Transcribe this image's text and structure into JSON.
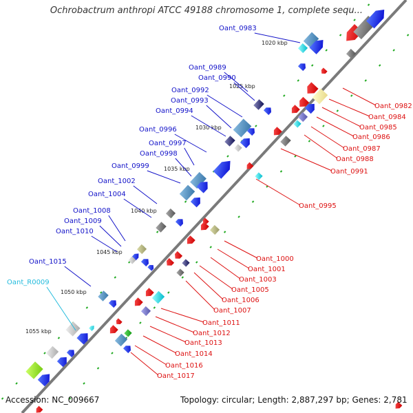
{
  "title": "Ochrobactrum anthropi ATCC 49188 chromosome 1, complete sequ...",
  "accession": "Accession: NC_009667",
  "topology": "Topology: circular; Length: 2,887,297 bp; Genes: 2,781",
  "colors": {
    "left_label": "#1010c8",
    "right_label": "#dd1010",
    "rna_label": "#22bbdd",
    "backbone": "#777777",
    "tick": "#22aa22"
  },
  "kbp_marks": [
    "1020 kbp",
    "1025 kbp",
    "1030 kbp",
    "1035 kbp",
    "1040 kbp",
    "1045 kbp",
    "1050 kbp",
    "1055 kbp"
  ],
  "left_labels": [
    "Oant_0983",
    "Oant_0989",
    "Oant_0990",
    "Oant_0992",
    "Oant_0993",
    "Oant_0994",
    "Oant_0996",
    "Oant_0997",
    "Oant_0998",
    "Oant_0999",
    "Oant_1002",
    "Oant_1004",
    "Oant_1008",
    "Oant_1009",
    "Oant_1010",
    "Oant_1015",
    "Oant_R0009"
  ],
  "right_labels": [
    "Oant_0982",
    "Oant_0984",
    "Oant_0985",
    "Oant_0986",
    "Oant_0987",
    "Oant_0988",
    "Oant_0991",
    "Oant_0995",
    "Oant_1000",
    "Oant_1001",
    "Oant_1003",
    "Oant_1005",
    "Oant_1006",
    "Oant_1007",
    "Oant_1011",
    "Oant_1012",
    "Oant_1013",
    "Oant_1014",
    "Oant_1016",
    "Oant_1017"
  ]
}
